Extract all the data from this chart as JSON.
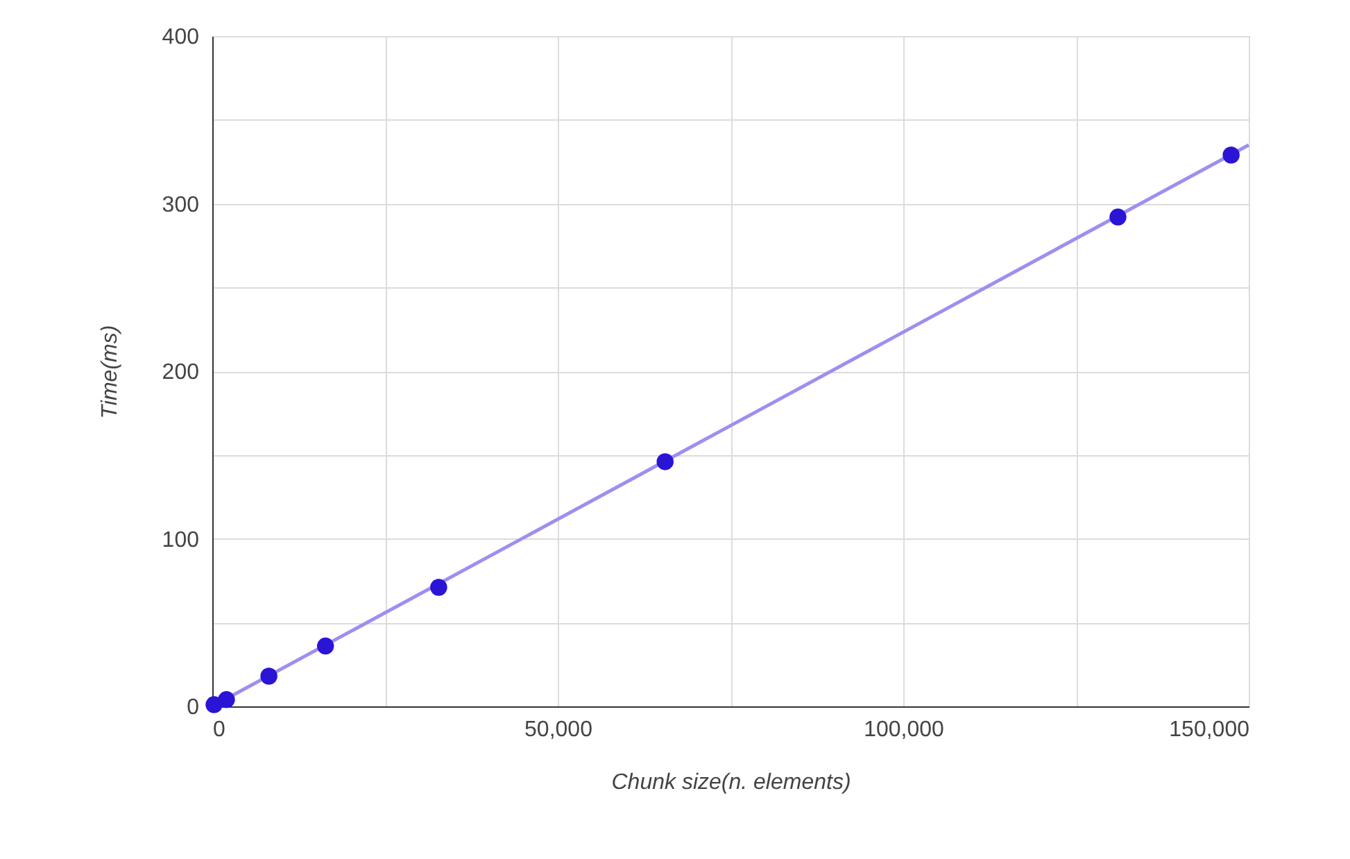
{
  "chart_data": {
    "type": "scatter",
    "xlabel": "Chunk size(n. elements)",
    "ylabel": "Time(ms)",
    "xlim": [
      0,
      150000
    ],
    "ylim": [
      0,
      400
    ],
    "xticks": [
      0,
      {
        "value": 25000,
        "label": null
      },
      {
        "value": 50000,
        "label": "50,000"
      },
      {
        "value": 75000,
        "label": null
      },
      {
        "value": 100000,
        "label": "100,000"
      },
      {
        "value": 125000,
        "label": null
      },
      {
        "value": 150000,
        "label": "150,000"
      }
    ],
    "yticks": [
      0,
      {
        "value": 50,
        "label": null
      },
      100,
      {
        "value": 150,
        "label": null
      },
      200,
      {
        "value": 250,
        "label": null
      },
      300,
      {
        "value": 350,
        "label": null
      },
      400
    ],
    "grid": true,
    "series": [
      {
        "color": "#2a14d6",
        "marker": "circle",
        "x": [
          256,
          2048,
          8192,
          16384,
          32768,
          65536,
          131072,
          147456
        ],
        "values": [
          1,
          4,
          18,
          36,
          71,
          146,
          292,
          329
        ]
      },
      {
        "type": "line",
        "color": "#9d8ff0",
        "line_style": "solid",
        "marker": "none",
        "x": [
          0,
          150000
        ],
        "values": [
          0,
          335
        ]
      }
    ]
  }
}
